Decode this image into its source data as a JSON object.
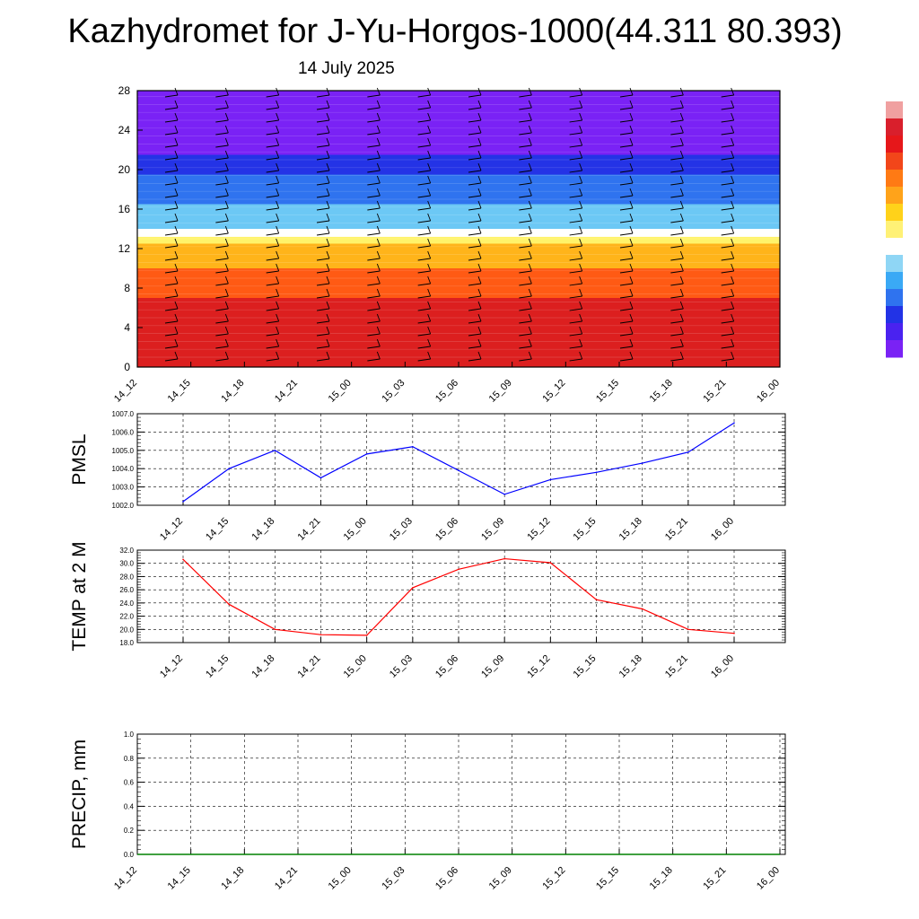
{
  "title": "Kazhydromet for J-Yu-Horgos-1000(44.311 80.393)",
  "date": "14 July 2025",
  "colorbar": {
    "colors": [
      "#7a22f5",
      "#4a22f0",
      "#2233e6",
      "#2f73ef",
      "#3aa9f5",
      "#8fd6f5",
      "#ffffff",
      "#fff176",
      "#ffd21a",
      "#ffa31a",
      "#ff7a14",
      "#f2461a",
      "#e6171a",
      "#d91f2c",
      "#f0a0a0"
    ]
  },
  "chart_data": [
    {
      "type": "heatmap",
      "name": "height-time section with wind barbs",
      "x_labels": [
        "14_12",
        "14_15",
        "14_18",
        "14_21",
        "15_00",
        "15_03",
        "15_06",
        "15_09",
        "15_12",
        "15_15",
        "15_18",
        "15_21",
        "16_00"
      ],
      "y_ticks": [
        0,
        4,
        8,
        12,
        16,
        20,
        24,
        28
      ],
      "ylim": [
        0,
        28
      ],
      "color_bands": [
        {
          "from": 0,
          "to": 7,
          "color": "#dc1f1f"
        },
        {
          "from": 7,
          "to": 10,
          "color": "#ff5a14"
        },
        {
          "from": 10,
          "to": 12.5,
          "color": "#ffb41a"
        },
        {
          "from": 12.5,
          "to": 13.2,
          "color": "#fff36a"
        },
        {
          "from": 13.2,
          "to": 14,
          "color": "#ffffff"
        },
        {
          "from": 14,
          "to": 16.5,
          "color": "#6cc8f5"
        },
        {
          "from": 16.5,
          "to": 19.5,
          "color": "#2f73ef"
        },
        {
          "from": 19.5,
          "to": 21.5,
          "color": "#2433e6"
        },
        {
          "from": 21.5,
          "to": 28,
          "color": "#7a22f5"
        }
      ],
      "barb_cols": 12,
      "barb_rows": 22
    },
    {
      "type": "line",
      "ylabel": "PMSL",
      "x": [
        "14_12",
        "14_15",
        "14_18",
        "14_21",
        "15_00",
        "15_03",
        "15_06",
        "15_09",
        "15_12",
        "15_15",
        "15_18",
        "15_21",
        "16_00"
      ],
      "values": [
        1002.2,
        1004.0,
        1005.0,
        1003.5,
        1004.8,
        1005.2,
        1003.9,
        1002.6,
        1003.4,
        1003.8,
        1004.3,
        1004.9,
        1006.5
      ],
      "y_ticks": [
        "1002.0",
        "1003.0",
        "1004.0",
        "1005.0",
        "1006.0",
        "1007.0"
      ],
      "ylim": [
        1002,
        1007
      ],
      "color": "#0000ff",
      "grid": true
    },
    {
      "type": "line",
      "ylabel": "TEMP at 2 M",
      "x": [
        "14_12",
        "14_15",
        "14_18",
        "14_21",
        "15_00",
        "15_03",
        "15_06",
        "15_09",
        "15_12",
        "15_15",
        "15_18",
        "15_21",
        "16_00"
      ],
      "values": [
        30.6,
        23.8,
        20.0,
        19.2,
        19.1,
        26.3,
        29.1,
        30.7,
        30.1,
        24.5,
        23.1,
        20.0,
        19.4
      ],
      "y_ticks": [
        "18.0",
        "20.0",
        "22.0",
        "24.0",
        "26.0",
        "28.0",
        "30.0",
        "32.0"
      ],
      "ylim": [
        18,
        32
      ],
      "color": "#ff0000",
      "grid": true
    },
    {
      "type": "line",
      "ylabel": "PRECIP, mm",
      "x": [
        "14_12",
        "14_15",
        "14_18",
        "14_21",
        "15_00",
        "15_03",
        "15_06",
        "15_09",
        "15_12",
        "15_15",
        "15_18",
        "15_21",
        "16_00"
      ],
      "values": [
        0,
        0,
        0,
        0,
        0,
        0,
        0,
        0,
        0,
        0,
        0,
        0,
        0
      ],
      "y_ticks": [
        "0.0",
        "0.2",
        "0.4",
        "0.6",
        "0.8",
        "1.0"
      ],
      "ylim": [
        0,
        1
      ],
      "color": "#008000",
      "grid": true
    }
  ]
}
